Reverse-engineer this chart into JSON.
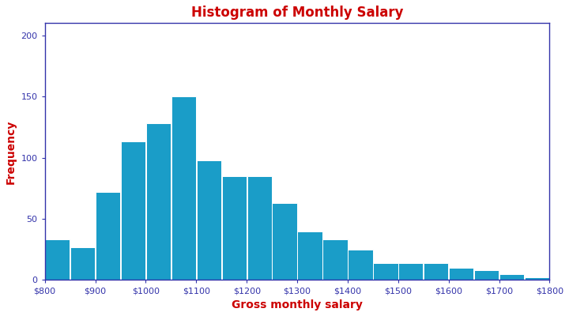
{
  "title": "Histogram of Monthly Salary",
  "xlabel": "Gross monthly salary",
  "ylabel": "Frequency",
  "title_color": "#cc0000",
  "label_color": "#cc0000",
  "bar_color": "#1a9dc8",
  "bar_edge_color": "#ffffff",
  "axis_color": "#3333aa",
  "tick_color": "#3333aa",
  "background_color": "#ffffff",
  "ylim": [
    0,
    210
  ],
  "yticks": [
    0,
    50,
    100,
    150,
    200
  ],
  "bin_edges": [
    800,
    850,
    900,
    950,
    1000,
    1050,
    1100,
    1150,
    1200,
    1250,
    1300,
    1350,
    1400,
    1450,
    1500,
    1550,
    1600,
    1650,
    1700,
    1750,
    1800
  ],
  "frequencies": [
    33,
    27,
    72,
    113,
    128,
    150,
    98,
    85,
    85,
    63,
    40,
    33,
    25,
    14,
    14,
    14,
    10,
    8,
    5,
    2
  ],
  "xticks": [
    800,
    900,
    1000,
    1100,
    1200,
    1300,
    1400,
    1500,
    1600,
    1700,
    1800
  ],
  "xtick_labels": [
    "$800",
    "$900",
    "$1000",
    "$1100",
    "$1200",
    "$1300",
    "$1400",
    "$1500",
    "$1600",
    "$1700",
    "$1800"
  ],
  "figsize": [
    7.2,
    4.0
  ],
  "dpi": 100,
  "title_fontsize": 12,
  "label_fontsize": 10,
  "tick_fontsize": 8
}
